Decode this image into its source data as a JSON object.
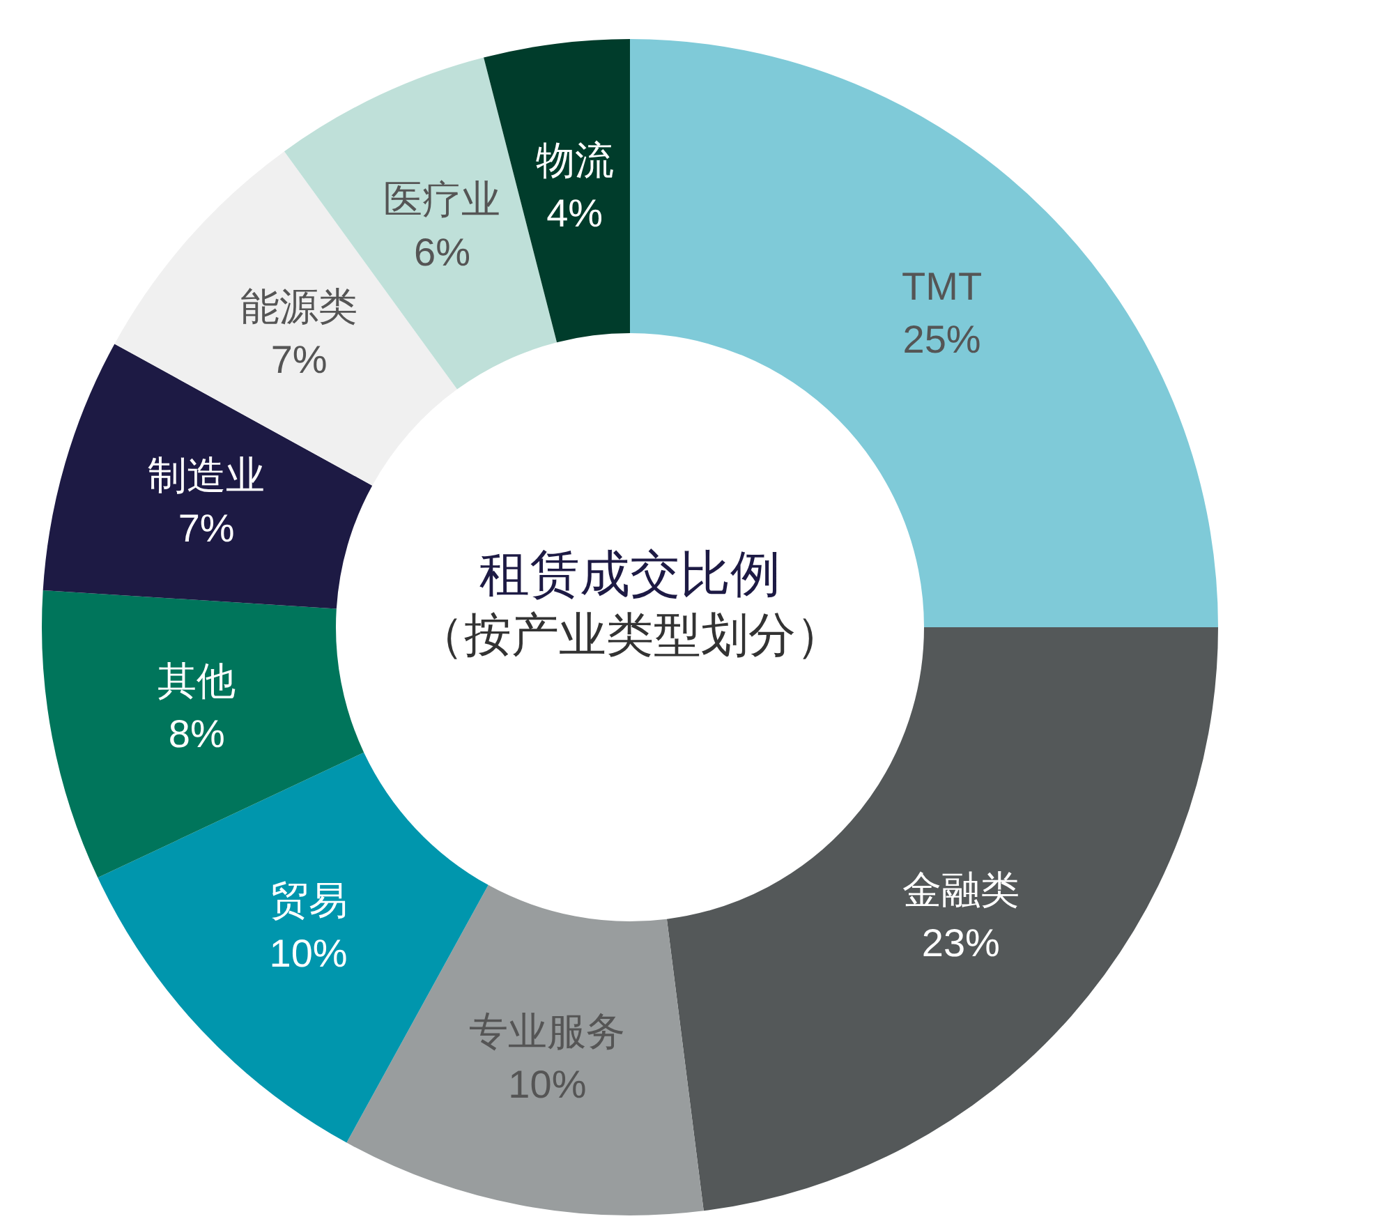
{
  "chart_data": {
    "type": "donut",
    "title": "租赁成交比例",
    "subtitle": "（按产业类型划分）",
    "categories": [
      "TMT",
      "金融类",
      "专业服务",
      "贸易",
      "其他",
      "制造业",
      "能源类",
      "医疗业",
      "物流"
    ],
    "values": [
      25,
      23,
      10,
      10,
      8,
      7,
      7,
      6,
      4
    ],
    "value_labels": [
      "25%",
      "23%",
      "10%",
      "10%",
      "8%",
      "7%",
      "7%",
      "6%",
      "4%"
    ],
    "colors": [
      "#7fcad8",
      "#545859",
      "#999d9e",
      "#0096ad",
      "#00755b",
      "#1d1a44",
      "#f0f0f0",
      "#bfe0d9",
      "#003c2b"
    ],
    "legend": false
  }
}
